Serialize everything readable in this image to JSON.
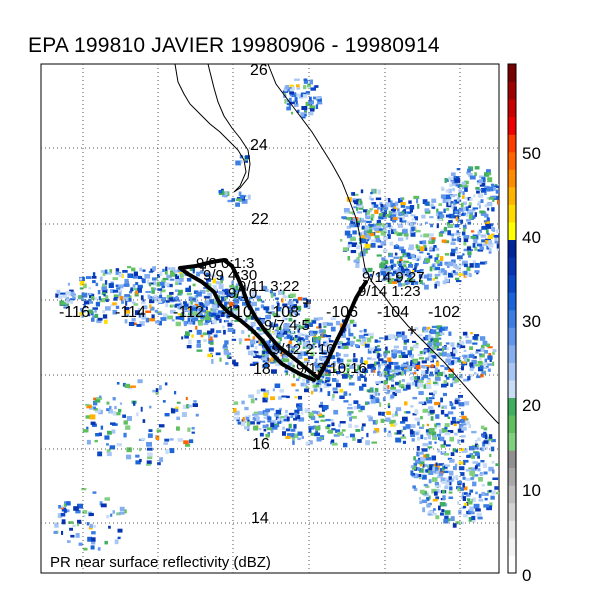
{
  "title": "EPA 199810 JAVIER 19980906 - 19980914",
  "caption": "PR near surface reflectivity (dBZ)",
  "lat_labels": [
    "26",
    "24",
    "22",
    "18",
    "16",
    "14"
  ],
  "lon_labels": [
    "-116",
    "-114",
    "-112",
    "-110",
    "-108",
    "-106",
    "-104",
    "-102"
  ],
  "track_labels": [
    "9/8 0:1:3",
    "9/9 4:30",
    "9/11 3:22",
    "9/10",
    "9/12 2:10",
    "9/7 4:5",
    "9/13 10:16",
    "9/14 9:27",
    "9/14 1:23"
  ],
  "colorbar": {
    "ticks": [
      "50",
      "40",
      "30",
      "20",
      "10",
      "0"
    ],
    "colors": [
      "#ffffff",
      "#f4f4f4",
      "#e6e6e6",
      "#d3d3d3",
      "#bebebe",
      "#a8a8a8",
      "#909090",
      "#7fcf7f",
      "#5fbf5f",
      "#3fae5f",
      "#c9dcf6",
      "#a7c6f3",
      "#84aef0",
      "#5f95ea",
      "#3b7de3",
      "#1a63d8",
      "#0a47c7",
      "#0633b0",
      "#00259a",
      "#ffff00",
      "#ffdb00",
      "#ffb400",
      "#ff8c00",
      "#ff6400",
      "#ff3c00",
      "#f00000",
      "#c80000",
      "#a00000",
      "#780000"
    ]
  },
  "track": {
    "color": "#000000"
  }
}
